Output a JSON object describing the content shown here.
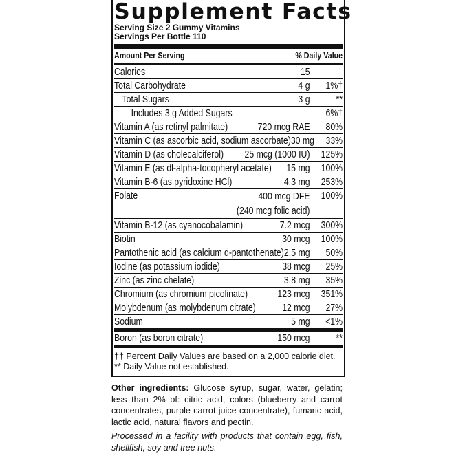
{
  "title": "Supplement Facts",
  "serving_size": "Serving Size 2 Gummy Vitamins",
  "servings_per": "Servings Per Bottle 110",
  "header": {
    "amount": "Amount Per Serving",
    "dv": "% Daily Value"
  },
  "rows": [
    {
      "name": "Calories",
      "amount": "15",
      "dv": ""
    },
    {
      "name": "Total Carbohydrate",
      "amount": "4 g",
      "dv": "1%†"
    },
    {
      "name": "Total Sugars",
      "amount": "3 g",
      "dv": "**",
      "indent": 1
    },
    {
      "name": "Includes 3 g Added Sugars",
      "amount": "",
      "dv": "6%†",
      "indent": 2
    },
    {
      "name": "Vitamin A (as retinyl palmitate)",
      "amount": "720 mcg RAE",
      "dv": "80%"
    },
    {
      "name": "Vitamin C (as ascorbic acid, sodium ascorbate)",
      "amount": "30 mg",
      "dv": "33%"
    },
    {
      "name": "Vitamin D (as cholecalciferol)",
      "amount": "25 mcg (1000 IU)",
      "dv": "125%"
    },
    {
      "name": "Vitamin E (as dl-alpha-tocopheryl acetate)",
      "amount": "15 mg",
      "dv": "100%"
    },
    {
      "name": "Vitamin B-6 (as pyridoxine HCl)",
      "amount": "4.3 mg",
      "dv": "253%"
    },
    {
      "name": "Folate",
      "amount": "400 mcg DFE",
      "amount2": "(240 mcg folic acid)",
      "dv": "100%"
    },
    {
      "name": "Vitamin B-12 (as cyanocobalamin)",
      "amount": "7.2 mcg",
      "dv": "300%"
    },
    {
      "name": "Biotin",
      "amount": "30 mcg",
      "dv": "100%"
    },
    {
      "name": "Pantothenic acid (as calcium d-pantothenate)",
      "amount": "2.5 mg",
      "dv": "50%"
    },
    {
      "name": "Iodine (as potassium iodide)",
      "amount": "38 mcg",
      "dv": "25%"
    },
    {
      "name": "Zinc (as zinc chelate)",
      "amount": "3.8 mg",
      "dv": "35%"
    },
    {
      "name": "Chromium (as chromium picolinate)",
      "amount": "123 mcg",
      "dv": "351%"
    },
    {
      "name": "Molybdenum (as molybdenum citrate)",
      "amount": "12 mcg",
      "dv": "27%"
    },
    {
      "name": "Sodium",
      "amount": "5 mg",
      "dv": "<1%",
      "thick": true
    },
    {
      "name": "Boron (as boron citrate)",
      "amount": "150 mcg",
      "dv": "**",
      "thick": true
    }
  ],
  "footnotes": [
    "†† Percent Daily Values are based on a 2,000 calorie diet.",
    "** Daily Value not established."
  ],
  "ingredients_label": "Other ingredients:",
  "ingredients": " Glucose syrup, sugar, water, gelatin; less than 2% of: citric acid, colors (blueberry and carrot concentrates, purple carrot juice concentrate), fumaric acid, lactic acid, natural flavors and pectin.",
  "allergen": "Processed in a facility with products that contain egg, fish, shellfish, soy and tree nuts."
}
